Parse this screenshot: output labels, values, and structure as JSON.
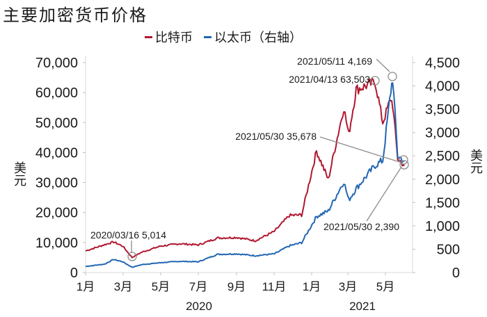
{
  "title": "主要加密货币价格",
  "legend": [
    {
      "label": "比特币",
      "color": "#b0182f"
    },
    {
      "label": "以太币（右轴）",
      "color": "#2166b3"
    }
  ],
  "axes": {
    "left_unit": "美元",
    "right_unit": "美元",
    "left_ticks": [
      "0",
      "10,000",
      "20,000",
      "30,000",
      "40,000",
      "50,000",
      "60,000",
      "70,000"
    ],
    "right_ticks": [
      "0",
      "500",
      "1,000",
      "1,500",
      "2,000",
      "2,500",
      "3,000",
      "3,500",
      "4,000",
      "4,500"
    ],
    "x_ticks": [
      "1月",
      "3月",
      "5月",
      "7月",
      "9月",
      "11月",
      "1月",
      "3月",
      "5月"
    ],
    "x_years": [
      "2020",
      "2021"
    ]
  },
  "annotations": [
    {
      "text": "2020/03/16 5,014"
    },
    {
      "text": "2021/04/13 63,503"
    },
    {
      "text": "2021/05/11 4,169"
    },
    {
      "text": "2021/05/30 35,678"
    },
    {
      "text": "2021/05/30 2,390"
    }
  ],
  "chart_data": {
    "type": "line",
    "title": "主要加密货币价格",
    "xlabel": "",
    "ylabel": "美元",
    "ylabel_right": "美元",
    "ylim": [
      0,
      70000
    ],
    "ylim_right": [
      0,
      4500
    ],
    "x_tick_labels": [
      "2020-01",
      "2020-03",
      "2020-05",
      "2020-07",
      "2020-09",
      "2020-11",
      "2021-01",
      "2021-03",
      "2021-05"
    ],
    "legend_position": "top",
    "grid": false,
    "x": [
      "2020-01-01",
      "2020-02-01",
      "2020-02-15",
      "2020-03-01",
      "2020-03-16",
      "2020-04-01",
      "2020-05-01",
      "2020-06-01",
      "2020-07-01",
      "2020-08-01",
      "2020-09-01",
      "2020-10-01",
      "2020-11-01",
      "2020-11-25",
      "2020-12-15",
      "2021-01-08",
      "2021-01-27",
      "2021-02-21",
      "2021-03-01",
      "2021-03-13",
      "2021-04-13",
      "2021-04-25",
      "2021-05-08",
      "2021-05-11",
      "2021-05-19",
      "2021-05-30"
    ],
    "series": [
      {
        "name": "比特币",
        "axis": "left",
        "color": "#b0182f",
        "values": [
          7200,
          9300,
          10200,
          8800,
          5014,
          6800,
          8800,
          9600,
          9200,
          11500,
          11700,
          10600,
          13700,
          19000,
          19200,
          40500,
          31000,
          55000,
          46000,
          61000,
          63503,
          50000,
          58000,
          56000,
          38000,
          35678
        ]
      },
      {
        "name": "以太币（右轴）",
        "axis": "right",
        "color": "#2166b3",
        "values": [
          130,
          180,
          280,
          230,
          112,
          170,
          210,
          240,
          230,
          390,
          400,
          360,
          400,
          570,
          640,
          1200,
          1320,
          1950,
          1550,
          1800,
          2300,
          2400,
          3900,
          4169,
          2500,
          2390
        ]
      }
    ],
    "annotations": [
      {
        "series": "比特币",
        "date": "2020/03/16",
        "value": 5014
      },
      {
        "series": "比特币",
        "date": "2021/04/13",
        "value": 63503
      },
      {
        "series": "以太币（右轴）",
        "date": "2021/05/11",
        "value": 4169
      },
      {
        "series": "比特币",
        "date": "2021/05/30",
        "value": 35678
      },
      {
        "series": "以太币（右轴）",
        "date": "2021/05/30",
        "value": 2390
      }
    ]
  }
}
